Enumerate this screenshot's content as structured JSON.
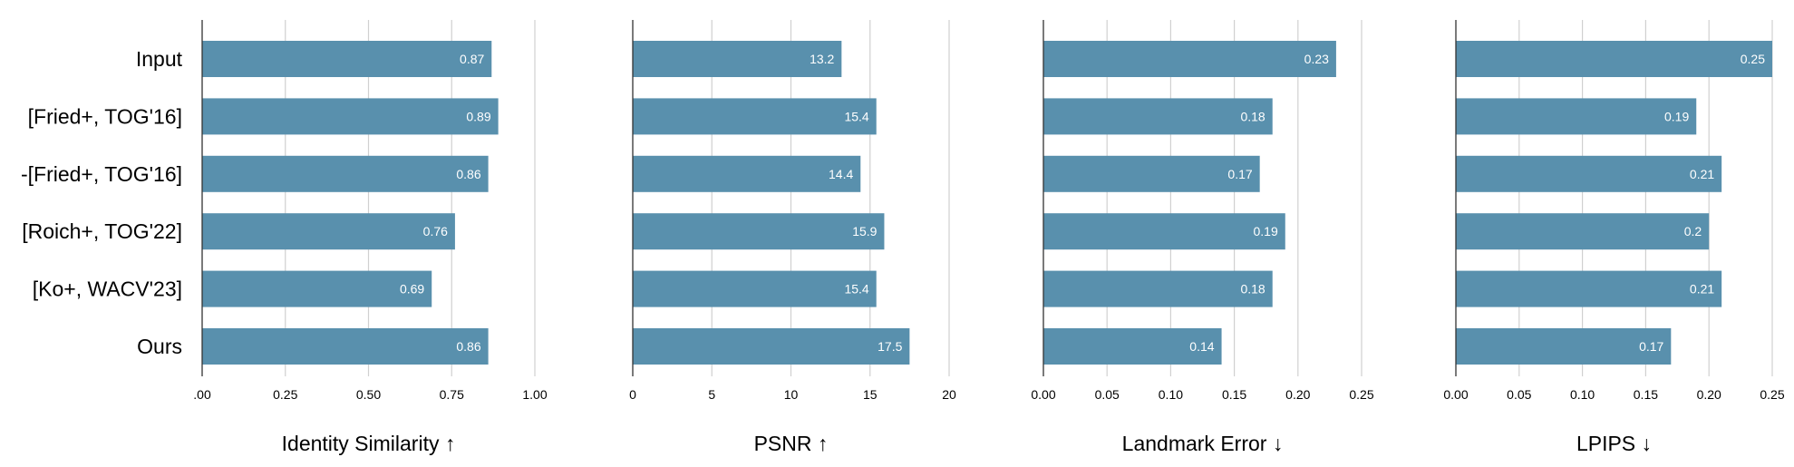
{
  "bar_color": "#5990ad",
  "grid_color": "#d0d0d0",
  "label_color": "#ffffff",
  "text_color": "#000000",
  "chart_data": [
    {
      "type": "bar",
      "orientation": "horizontal",
      "categories": [
        "Input",
        "[Fried+, TOG'16]",
        "-[Fried+, TOG'16]",
        "[Roich+, TOG'22]",
        "[Ko+, WACV'23]",
        "Ours"
      ],
      "values": [
        0.87,
        0.89,
        0.86,
        0.76,
        0.69,
        0.86
      ],
      "value_labels": [
        "0.87",
        "0.89",
        "0.86",
        "0.76",
        "0.69",
        "0.86"
      ],
      "xlabel": "Identity Similarity ↑",
      "xlim": [
        0,
        1.0
      ],
      "ticks": [
        0,
        0.25,
        0.5,
        0.75,
        1.0
      ],
      "tick_labels": [
        ".00",
        "0.25",
        "0.50",
        "0.75",
        "1.00"
      ],
      "grid": true
    },
    {
      "type": "bar",
      "orientation": "horizontal",
      "categories": [
        "Input",
        "[Fried+, TOG'16]",
        "-[Fried+, TOG'16]",
        "[Roich+, TOG'22]",
        "[Ko+, WACV'23]",
        "Ours"
      ],
      "values": [
        13.2,
        15.4,
        14.4,
        15.9,
        15.4,
        17.5
      ],
      "value_labels": [
        "13.2",
        "15.4",
        "14.4",
        "15.9",
        "15.4",
        "17.5"
      ],
      "xlabel": "PSNR ↑",
      "xlim": [
        0,
        20
      ],
      "ticks": [
        0,
        5,
        10,
        15,
        20
      ],
      "tick_labels": [
        "0",
        "5",
        "10",
        "15",
        "20"
      ],
      "grid": true
    },
    {
      "type": "bar",
      "orientation": "horizontal",
      "categories": [
        "Input",
        "[Fried+, TOG'16]",
        "-[Fried+, TOG'16]",
        "[Roich+, TOG'22]",
        "[Ko+, WACV'23]",
        "Ours"
      ],
      "values": [
        0.23,
        0.18,
        0.17,
        0.19,
        0.18,
        0.14
      ],
      "value_labels": [
        "0.23",
        "0.18",
        "0.17",
        "0.19",
        "0.18",
        "0.14"
      ],
      "xlabel": "Landmark Error ↓",
      "xlim": [
        0,
        0.25
      ],
      "ticks": [
        0,
        0.05,
        0.1,
        0.15,
        0.2,
        0.25
      ],
      "tick_labels": [
        "0.00",
        "0.05",
        "0.10",
        "0.15",
        "0.20",
        "0.25"
      ],
      "grid": true
    },
    {
      "type": "bar",
      "orientation": "horizontal",
      "categories": [
        "Input",
        "[Fried+, TOG'16]",
        "-[Fried+, TOG'16]",
        "[Roich+, TOG'22]",
        "[Ko+, WACV'23]",
        "Ours"
      ],
      "values": [
        0.25,
        0.19,
        0.21,
        0.2,
        0.21,
        0.17
      ],
      "value_labels": [
        "0.25",
        "0.19",
        "0.21",
        "0.2",
        "0.21",
        "0.17"
      ],
      "xlabel": "LPIPS ↓",
      "xlim": [
        0,
        0.25
      ],
      "ticks": [
        0,
        0.05,
        0.1,
        0.15,
        0.2,
        0.25
      ],
      "tick_labels": [
        "0.00",
        "0.05",
        "0.10",
        "0.15",
        "0.20",
        "0.25"
      ],
      "grid": true
    }
  ]
}
